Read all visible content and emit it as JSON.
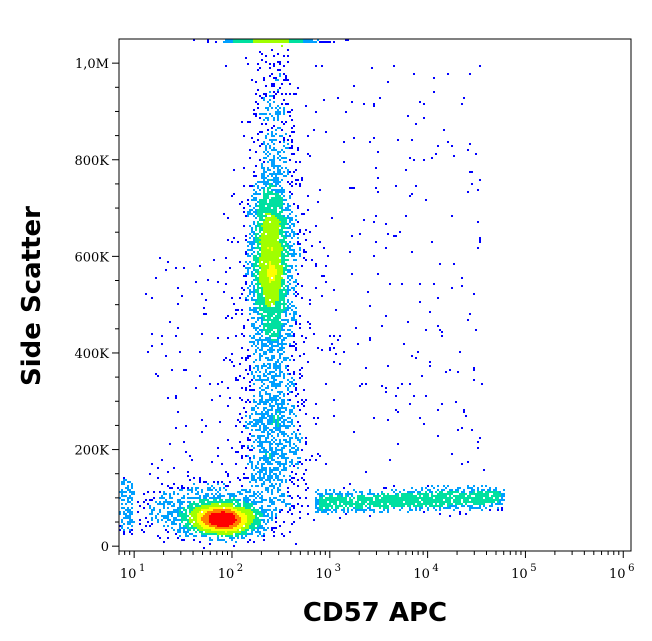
{
  "chart_data": {
    "type": "scatter",
    "subtype": "flow-cytometry-density-dot-plot",
    "title": "",
    "xlabel": "CD57 APC",
    "ylabel": "Side Scatter",
    "x_scale": "log",
    "y_scale": "linear",
    "xlim": [
      7,
      1200000
    ],
    "ylim": [
      -10000,
      1050000
    ],
    "x_ticks": [
      {
        "value": 10,
        "base": "10",
        "exp": "1"
      },
      {
        "value": 100,
        "base": "10",
        "exp": "2"
      },
      {
        "value": 1000,
        "base": "10",
        "exp": "3"
      },
      {
        "value": 10000,
        "base": "10",
        "exp": "4"
      },
      {
        "value": 100000,
        "base": "10",
        "exp": "5"
      },
      {
        "value": 1000000,
        "base": "10",
        "exp": "6"
      }
    ],
    "y_ticks": [
      {
        "value": 0,
        "label": "0"
      },
      {
        "value": 200000,
        "label": "200K"
      },
      {
        "value": 400000,
        "label": "400K"
      },
      {
        "value": 600000,
        "label": "600K"
      },
      {
        "value": 800000,
        "label": "800K"
      },
      {
        "value": 1000000,
        "label": "1,0M"
      }
    ],
    "populations": [
      {
        "name": "lymphocytes (CD57 negative)",
        "x_center": 80,
        "y_center": 55000,
        "density": "highest"
      },
      {
        "name": "granulocytes",
        "x_center": 250,
        "y_center": 580000,
        "density": "high"
      },
      {
        "name": "CD57 positive lymphocytes",
        "x_range": [
          1000,
          50000
        ],
        "y_center": 90000,
        "density": "low"
      },
      {
        "name": "saturated events",
        "x_center": 250,
        "y_center": 1040000,
        "density": "medium"
      }
    ],
    "density_colors": [
      "#0000ff",
      "#00a0ff",
      "#00e0a0",
      "#a0ff00",
      "#ffff00",
      "#ff8000",
      "#ff0000"
    ],
    "grid": false,
    "legend": "none"
  }
}
